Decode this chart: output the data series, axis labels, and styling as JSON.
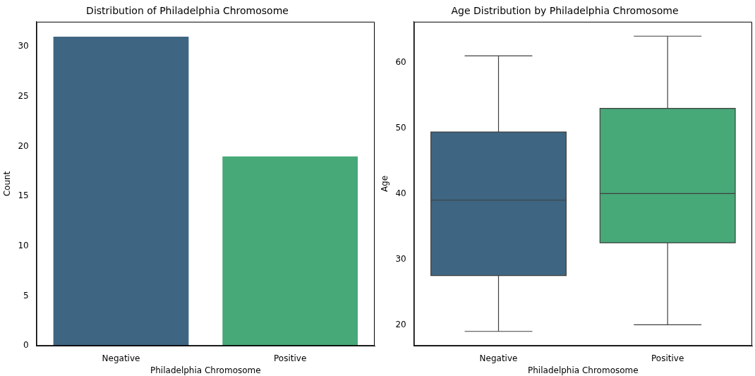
{
  "chart_data": [
    {
      "type": "bar",
      "title": "Distribution of Philadelphia Chromosome",
      "xlabel": "Philadelphia Chromosome",
      "ylabel": "Count",
      "categories": [
        "Negative",
        "Positive"
      ],
      "values": [
        31,
        19
      ],
      "colors": [
        "#3e6682",
        "#47a878"
      ],
      "ylim": [
        0,
        32.5
      ],
      "yticks": [
        0,
        5,
        10,
        15,
        20,
        25,
        30
      ]
    },
    {
      "type": "box",
      "title": "Age Distribution by Philadelphia Chromosome",
      "xlabel": "Philadelphia Chromosome",
      "ylabel": "Age",
      "categories": [
        "Negative",
        "Positive"
      ],
      "colors": [
        "#3e6682",
        "#47a878"
      ],
      "ylim": [
        16.8,
        66.2
      ],
      "yticks": [
        20,
        30,
        40,
        50,
        60
      ],
      "boxes": [
        {
          "low": 19,
          "q1": 27.5,
          "median": 39,
          "q3": 49.4,
          "high": 61
        },
        {
          "low": 20,
          "q1": 32.5,
          "median": 40,
          "q3": 53,
          "high": 64
        }
      ]
    }
  ]
}
